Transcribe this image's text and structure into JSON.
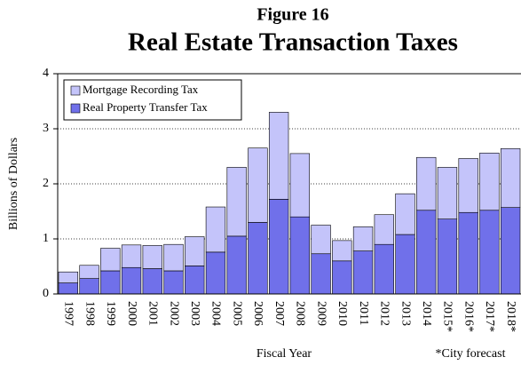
{
  "chart_data": {
    "type": "stacked_bar",
    "title": "Figure 16",
    "subtitle": "Real Estate Transaction Taxes",
    "ylabel": "Billions of Dollars",
    "xlabel": "Fiscal Year",
    "annotation": "*City forecast",
    "categories": [
      "1997",
      "1998",
      "1999",
      "2000",
      "2001",
      "2002",
      "2003",
      "2004",
      "2005",
      "2006",
      "2007",
      "2008",
      "2009",
      "2010",
      "2011",
      "2012",
      "2013",
      "2014",
      "2015*",
      "2016*",
      "2017*",
      "2018*"
    ],
    "series": [
      {
        "name": "Real Property Transfer Tax",
        "color": "#7070ea",
        "values": [
          0.2,
          0.28,
          0.42,
          0.48,
          0.46,
          0.42,
          0.51,
          0.76,
          1.05,
          1.3,
          1.72,
          1.4,
          0.73,
          0.6,
          0.78,
          0.9,
          1.08,
          1.52,
          1.36,
          1.48,
          1.52,
          1.57
        ]
      },
      {
        "name": "Mortgage Recording Tax",
        "color": "#c4c4fa",
        "values": [
          0.2,
          0.24,
          0.41,
          0.41,
          0.42,
          0.48,
          0.53,
          0.82,
          1.25,
          1.35,
          1.58,
          1.15,
          0.52,
          0.37,
          0.44,
          0.54,
          0.74,
          0.96,
          0.94,
          0.98,
          1.04,
          1.07
        ]
      }
    ],
    "ylim": [
      0,
      4
    ],
    "yticks": [
      0,
      1,
      2,
      3,
      4
    ],
    "grid": true
  }
}
